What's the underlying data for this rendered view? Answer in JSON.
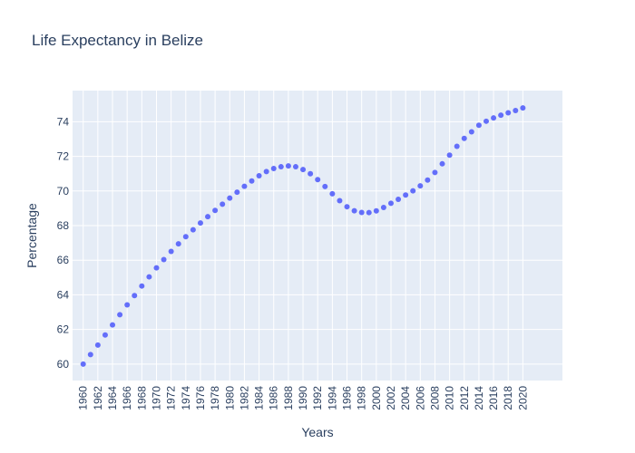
{
  "chart_data": {
    "type": "scatter",
    "title": "Life Expectancy in Belize",
    "xlabel": "Years",
    "ylabel": "Percentage",
    "x": [
      1960,
      1961,
      1962,
      1963,
      1964,
      1965,
      1966,
      1967,
      1968,
      1969,
      1970,
      1971,
      1972,
      1973,
      1974,
      1975,
      1976,
      1977,
      1978,
      1979,
      1980,
      1981,
      1982,
      1983,
      1984,
      1985,
      1986,
      1987,
      1988,
      1989,
      1990,
      1991,
      1992,
      1993,
      1994,
      1995,
      1996,
      1997,
      1998,
      1999,
      2000,
      2001,
      2002,
      2003,
      2004,
      2005,
      2006,
      2007,
      2008,
      2009,
      2010,
      2011,
      2012,
      2013,
      2014,
      2015,
      2016,
      2017,
      2018,
      2019,
      2020
    ],
    "y": [
      60.0,
      60.55,
      61.1,
      61.68,
      62.26,
      62.85,
      63.42,
      63.96,
      64.51,
      65.04,
      65.56,
      66.04,
      66.51,
      66.95,
      67.36,
      67.76,
      68.15,
      68.52,
      68.88,
      69.24,
      69.59,
      69.93,
      70.27,
      70.58,
      70.88,
      71.12,
      71.3,
      71.4,
      71.45,
      71.4,
      71.24,
      71.0,
      70.66,
      70.26,
      69.84,
      69.44,
      69.09,
      68.86,
      68.76,
      68.75,
      68.85,
      69.05,
      69.29,
      69.52,
      69.77,
      70.01,
      70.3,
      70.63,
      71.07,
      71.57,
      72.07,
      72.58,
      73.04,
      73.42,
      73.8,
      74.03,
      74.22,
      74.38,
      74.52,
      74.65,
      74.8
    ],
    "xticks": [
      "1960",
      "1962",
      "1964",
      "1966",
      "1968",
      "1970",
      "1972",
      "1974",
      "1976",
      "1978",
      "1980",
      "1982",
      "1984",
      "1986",
      "1988",
      "1990",
      "1992",
      "1994",
      "1996",
      "1998",
      "2000",
      "2002",
      "2004",
      "2006",
      "2008",
      "2010",
      "2012",
      "2014",
      "2016",
      "2018",
      "2020"
    ],
    "yticks": [
      60,
      62,
      64,
      66,
      68,
      70,
      72,
      74
    ],
    "xlim": [
      1958.55,
      2025.4
    ],
    "ylim": [
      59.05,
      75.8
    ],
    "grid": true,
    "colors": {
      "marker": "#636efa",
      "plot_bg": "#e5ecf6",
      "grid": "#ffffff"
    }
  }
}
